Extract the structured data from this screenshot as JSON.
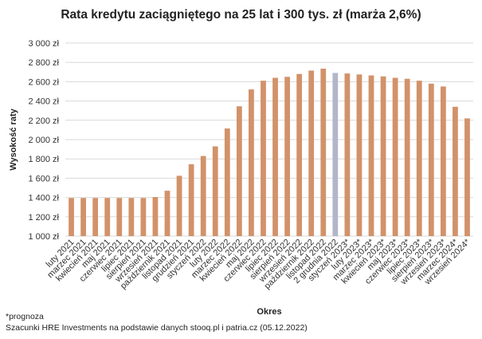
{
  "chart_data": {
    "type": "bar",
    "title": "Rata kredytu zaciągniętego na 25 lat i 300 tys. zł (marża 2,6%)",
    "xlabel": "Okres",
    "ylabel": "Wysokość raty",
    "ylim": [
      1000,
      3000
    ],
    "yticks": [
      1000,
      1200,
      1400,
      1600,
      1800,
      2000,
      2200,
      2400,
      2600,
      2800,
      3000
    ],
    "ytick_labels": [
      "1 000 zł",
      "1 200 zł",
      "1 400 zł",
      "1 600 zł",
      "1 800 zł",
      "2 000 zł",
      "2 200 zł",
      "2 400 zł",
      "2 600 zł",
      "2 800 zł",
      "3 000 zł"
    ],
    "grid": true,
    "legend": "none",
    "colors": {
      "actual": "#d2926a",
      "current": "#b3b5c8",
      "grid": "#d9d9d9"
    },
    "categories": [
      "luty 2021",
      "marzec 2021",
      "kwiecień 2021",
      "maj 2021",
      "czerwiec 2021",
      "lipiec 2021",
      "sierpień 2021",
      "wrzesień 2021",
      "październik 2021",
      "listopad 2021",
      "grudzień 2021",
      "styczeń 2022",
      "luty 2022",
      "marzec 2022",
      "kwiecień 2022",
      "maj 2022",
      "czerwiec 2022",
      "lipiec 2022",
      "sierpień 2022",
      "wrzesień 2022",
      "październik 2022",
      "listopad 2022",
      "2 grudnia 2022",
      "styczeń 2023*",
      "luty 2023*",
      "marzec 2023*",
      "kwiecień 2023*",
      "maj 2023*",
      "czerwiec 2023*",
      "lipiec 2023*",
      "sierpień 2023*",
      "wrzesień 2023*",
      "marzec 2024*",
      "wrzesień 2024*"
    ],
    "values": [
      1395,
      1395,
      1395,
      1395,
      1395,
      1395,
      1395,
      1405,
      1470,
      1625,
      1745,
      1830,
      1930,
      2115,
      2345,
      2520,
      2610,
      2640,
      2650,
      2680,
      2715,
      2735,
      2690,
      2685,
      2675,
      2665,
      2655,
      2640,
      2630,
      2610,
      2580,
      2550,
      2340,
      2220
    ],
    "highlight_index": 22
  },
  "footnote": "*prognoza",
  "source": "Szacunki HRE Investments na podstawie danych stooq.pl i patria.cz (05.12.2022)"
}
